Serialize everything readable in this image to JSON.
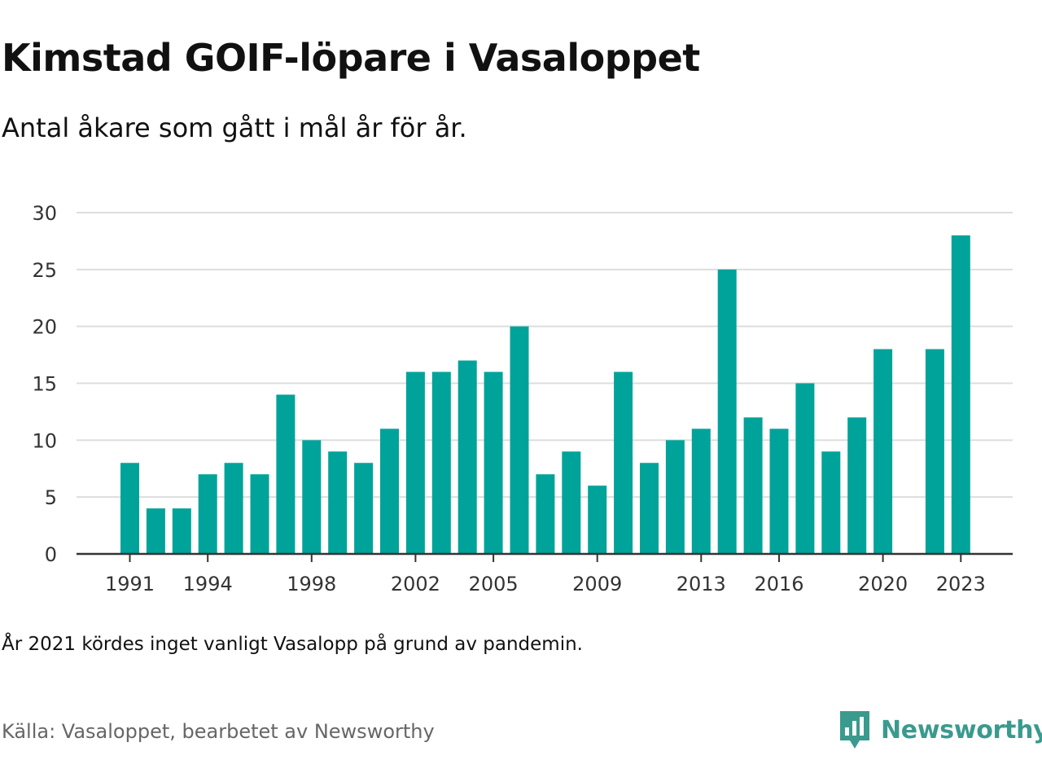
{
  "title": "Kimstad GOIF-löpare i Vasaloppet",
  "subtitle": "Antal åkare som gått i mål år för år.",
  "note": "År 2021 kördes inget vanligt Vasalopp på grund av pandemin.",
  "source": "Källa: Vasaloppet, bearbetet av Newsworthy",
  "logo_text": "Newsworthy",
  "colors": {
    "bar": "#00a39a",
    "grid": "#dddddd",
    "axis": "#333333",
    "logo": "#3a9a8e"
  },
  "chart_data": {
    "type": "bar",
    "x": [
      1991,
      1992,
      1993,
      1994,
      1995,
      1996,
      1997,
      1998,
      1999,
      2000,
      2001,
      2002,
      2003,
      2004,
      2005,
      2006,
      2007,
      2008,
      2009,
      2010,
      2011,
      2012,
      2013,
      2014,
      2015,
      2016,
      2017,
      2018,
      2019,
      2020,
      2021,
      2022,
      2023
    ],
    "values": [
      8,
      4,
      4,
      7,
      8,
      7,
      14,
      10,
      9,
      8,
      11,
      16,
      16,
      17,
      16,
      20,
      7,
      9,
      6,
      16,
      8,
      10,
      11,
      25,
      12,
      11,
      15,
      9,
      12,
      18,
      null,
      18,
      28
    ],
    "xticks": [
      1991,
      1994,
      1998,
      2002,
      2005,
      2009,
      2013,
      2016,
      2020,
      2023
    ],
    "yticks": [
      0,
      5,
      10,
      15,
      20,
      25,
      30
    ],
    "ylim": [
      0,
      30
    ],
    "xlabel": "",
    "ylabel": "",
    "grid": true
  }
}
